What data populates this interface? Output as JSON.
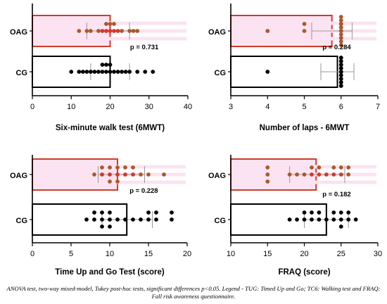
{
  "colors": {
    "oag_outline": "#d03a2a",
    "oag_fill": "#fbe3f1",
    "oag_dot": "#a85a2e",
    "oag_dot_red": "#d7352b",
    "cg_outline": "#000000",
    "cg_dot": "#000000",
    "error_bar": "#999999"
  },
  "chart_data": [
    {
      "type": "bar",
      "orientation": "horizontal",
      "xlabel": "Six-minute walk test (6MWT)",
      "xlim": [
        0,
        40
      ],
      "xticks": [
        0,
        10,
        20,
        30,
        40
      ],
      "categories": [
        "OAG",
        "CG"
      ],
      "annotation": "p = 0.731",
      "series": [
        {
          "category": "OAG",
          "mean": 20,
          "error": [
            14,
            25
          ],
          "points": [
            12,
            14,
            15,
            17,
            18,
            19,
            19,
            20,
            20,
            21,
            21,
            22,
            23,
            25,
            26,
            27
          ],
          "red_points": [
            18,
            19,
            20,
            21,
            22
          ]
        },
        {
          "category": "CG",
          "mean": 20,
          "error": [
            15,
            25
          ],
          "points": [
            10,
            12,
            13,
            14,
            15,
            16,
            17,
            18,
            18,
            19,
            19,
            20,
            20,
            21,
            22,
            23,
            24,
            25,
            27,
            29,
            31
          ]
        }
      ]
    },
    {
      "type": "bar",
      "orientation": "horizontal",
      "xlabel": "Number of laps - 6MWT",
      "xlim": [
        3,
        7
      ],
      "xticks": [
        3,
        4,
        5,
        6,
        7
      ],
      "categories": [
        "OAG",
        "CG"
      ],
      "annotation": "p = 0.284",
      "series": [
        {
          "category": "OAG",
          "mean": 5.75,
          "error": [
            5.2,
            6.3
          ],
          "points": [
            4,
            5,
            5,
            6,
            6,
            6,
            6,
            6,
            6,
            6,
            6,
            6,
            6,
            6,
            6,
            6
          ],
          "red_points": [
            6,
            6,
            6,
            6,
            6
          ]
        },
        {
          "category": "CG",
          "mean": 5.9,
          "error": [
            5.45,
            6.35
          ],
          "points": [
            4,
            6,
            6,
            6,
            6,
            6,
            6,
            6,
            6,
            6,
            6,
            6,
            6,
            6,
            6,
            6,
            6,
            6,
            6,
            6
          ]
        }
      ]
    },
    {
      "type": "bar",
      "orientation": "horizontal",
      "xlabel": "Time Up and Go Test (score)",
      "xlim": [
        0,
        20
      ],
      "xticks": [
        0,
        5,
        10,
        15,
        20
      ],
      "categories": [
        "OAG",
        "CG"
      ],
      "annotation": "p = 0.228",
      "series": [
        {
          "category": "OAG",
          "mean": 11,
          "error": [
            8.5,
            14.5
          ],
          "points": [
            8,
            9,
            9,
            10,
            10,
            10,
            11,
            11,
            11,
            12,
            12,
            13,
            13,
            14,
            15,
            17
          ],
          "red_points": [
            9,
            10,
            11,
            12,
            13
          ]
        },
        {
          "category": "CG",
          "mean": 12.2,
          "error": [
            9,
            15.5
          ],
          "points": [
            7,
            8,
            8,
            9,
            9,
            9,
            10,
            10,
            10,
            11,
            12,
            13,
            14,
            15,
            15,
            16,
            16,
            18,
            18
          ]
        }
      ]
    },
    {
      "type": "bar",
      "orientation": "horizontal",
      "xlabel": "FRAQ (score)",
      "xlim": [
        10,
        30
      ],
      "xticks": [
        10,
        15,
        20,
        25,
        30
      ],
      "categories": [
        "OAG",
        "CG"
      ],
      "annotation": "p = 0.182",
      "series": [
        {
          "category": "OAG",
          "mean": 21.6,
          "error": [
            18,
            25.5
          ],
          "points": [
            15,
            15,
            15,
            18,
            19,
            20,
            21,
            21,
            22,
            22,
            23,
            24,
            24,
            25,
            25,
            26,
            26
          ],
          "red_points": [
            21,
            22,
            23,
            24,
            25
          ]
        },
        {
          "category": "CG",
          "mean": 23,
          "error": [
            20,
            26
          ],
          "points": [
            18,
            19,
            20,
            20,
            21,
            21,
            22,
            22,
            23,
            24,
            24,
            25,
            25,
            25,
            26,
            26,
            27
          ]
        }
      ]
    }
  ],
  "caption": "ANOVA test, two-way mixed-model, Tukey post-hoc tests, significant differences p<0.05. Legend - TUG: Timed Up and Go; TC6: Walking test and FRAQ: Fall risk awareness questionnaire."
}
